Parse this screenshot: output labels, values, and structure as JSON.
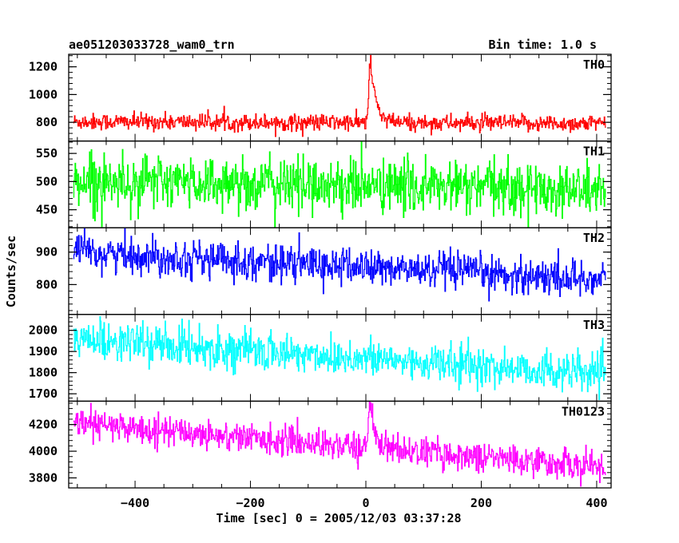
{
  "header": {
    "left": "ae051203033728_wam0_trn",
    "right": "Bin time: 1.0 s"
  },
  "chart_data": {
    "type": "line",
    "title": "ae051203033728_wam0_trn",
    "subtitle": "Bin time: 1.0 s",
    "xlabel": "Time [sec] 0 = 2005/12/03 03:37:28",
    "ylabel": "Counts/sec",
    "xlim": [
      -515,
      425
    ],
    "x_ticks": [
      -400,
      -200,
      0,
      200,
      400
    ],
    "x_tick_labels": [
      "−400",
      "−200",
      "0",
      "200",
      "400"
    ],
    "bin_time_s": 1.0,
    "x_range": [
      -507,
      415
    ],
    "grid": false,
    "panels": [
      {
        "name": "TH0",
        "color": "#ff0000",
        "ylim": [
          665,
          1290
        ],
        "ticks": [
          800,
          1000,
          1200
        ],
        "tick_labels": [
          "800",
          "1000",
          "1200"
        ],
        "level_start": 805,
        "level_end": 790,
        "noise_sd": 30,
        "burst": {
          "t_peak": 8,
          "peak": 1280,
          "rise_s": 3,
          "decay_s": 9
        }
      },
      {
        "name": "TH1",
        "color": "#00ff00",
        "ylim": [
          418,
          572
        ],
        "ticks": [
          450,
          500,
          550
        ],
        "tick_labels": [
          "450",
          "500",
          "550"
        ],
        "level_start": 502,
        "level_end": 485,
        "noise_sd": 24
      },
      {
        "name": "TH2",
        "color": "#0000ff",
        "ylim": [
          708,
          975
        ],
        "ticks": [
          800,
          900
        ],
        "tick_labels": [
          "800",
          "900"
        ],
        "level_start": 900,
        "level_end": 815,
        "noise_sd": 28
      },
      {
        "name": "TH3",
        "color": "#00ffff",
        "ylim": [
          1665,
          2075
        ],
        "ticks": [
          1700,
          1800,
          1900,
          2000
        ],
        "tick_labels": [
          "1700",
          "1800",
          "1900",
          "2000"
        ],
        "level_start": 1960,
        "level_end": 1790,
        "noise_sd": 45
      },
      {
        "name": "TH0123",
        "color": "#ff00ff",
        "ylim": [
          3725,
          4375
        ],
        "ticks": [
          3800,
          4000,
          4200
        ],
        "tick_labels": [
          "3800",
          "4000",
          "4200"
        ],
        "level_start": 4210,
        "level_end": 3880,
        "noise_sd": 55,
        "burst": {
          "t_peak": 8,
          "peak": 4370,
          "rise_s": 3,
          "decay_s": 10
        }
      }
    ]
  }
}
